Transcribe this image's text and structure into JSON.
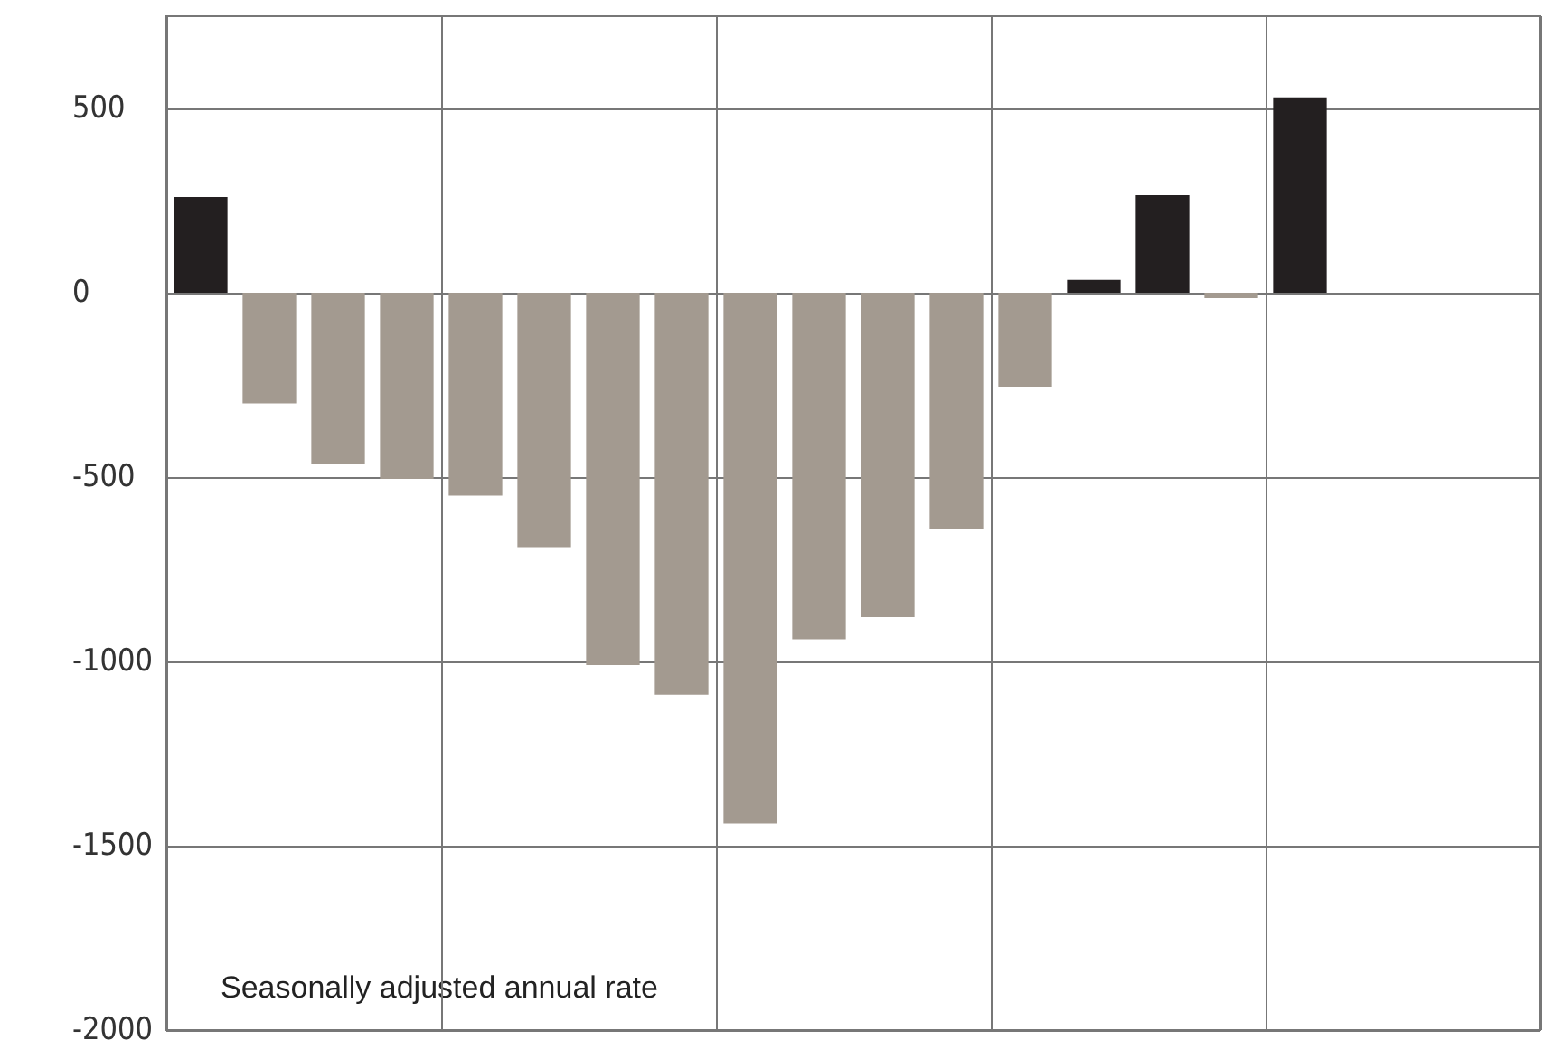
{
  "chart_data": {
    "type": "bar",
    "categories": [
      null,
      null,
      null,
      null,
      null,
      null,
      null,
      null,
      null,
      null,
      null,
      null,
      null,
      null,
      null,
      null,
      null,
      null,
      null,
      null
    ],
    "values": [
      260,
      -300,
      -465,
      -505,
      -550,
      -690,
      -1010,
      -1090,
      -1440,
      -940,
      -880,
      -640,
      -255,
      35,
      265,
      -15,
      530,
      null,
      null,
      null
    ],
    "colors": [
      "#231f20",
      "#a39a90",
      "#a39a90",
      "#a39a90",
      "#a39a90",
      "#a39a90",
      "#a39a90",
      "#a39a90",
      "#a39a90",
      "#a39a90",
      "#a39a90",
      "#a39a90",
      "#a39a90",
      "#231f20",
      "#231f20",
      "#a39a90",
      "#231f20",
      null,
      null,
      null
    ],
    "ylim": [
      -2000,
      750
    ],
    "yticks": [
      -2000,
      -1500,
      -1000,
      -500,
      0,
      500
    ],
    "grid": true,
    "tick_labels": "y",
    "annotations": [
      "Seasonally adjusted annual rate"
    ]
  }
}
